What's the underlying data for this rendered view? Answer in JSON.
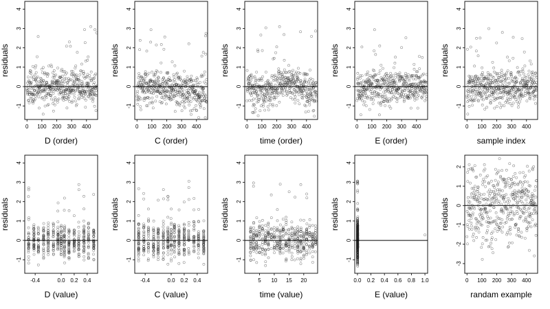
{
  "chart_data": [
    {
      "type": "scatter",
      "xlabel": "D (order)",
      "ylabel": "residuals",
      "xticks": [
        "0",
        "100",
        "200",
        "300",
        "400"
      ],
      "yticks": [
        "-1",
        "0",
        "1",
        "2",
        "3",
        "4"
      ],
      "xlim": [
        -15,
        475
      ],
      "ylim": [
        -1.7,
        4.4
      ],
      "n_points": 470,
      "gen": {
        "kind": "order",
        "curve": "none",
        "seed": 11
      }
    },
    {
      "type": "scatter",
      "xlabel": "C (order)",
      "ylabel": "residuals",
      "xticks": [
        "0",
        "100",
        "200",
        "300",
        "400"
      ],
      "yticks": [
        "-1",
        "0",
        "1",
        "2",
        "3",
        "4"
      ],
      "xlim": [
        -15,
        475
      ],
      "ylim": [
        -1.7,
        4.4
      ],
      "n_points": 470,
      "gen": {
        "kind": "order",
        "curve": "decline",
        "seed": 12
      }
    },
    {
      "type": "scatter",
      "xlabel": "time (order)",
      "ylabel": "residuals",
      "xticks": [
        "0",
        "100",
        "200",
        "300",
        "400"
      ],
      "yticks": [
        "-1",
        "0",
        "1",
        "2",
        "3",
        "4"
      ],
      "xlim": [
        -15,
        475
      ],
      "ylim": [
        -1.7,
        4.4
      ],
      "n_points": 470,
      "gen": {
        "kind": "order",
        "curve": "wave",
        "seed": 13
      }
    },
    {
      "type": "scatter",
      "xlabel": "E (order)",
      "ylabel": "residuals",
      "xticks": [
        "0",
        "100",
        "200",
        "300",
        "400"
      ],
      "yticks": [
        "-1",
        "0",
        "1",
        "2",
        "3",
        "4"
      ],
      "xlim": [
        -15,
        475
      ],
      "ylim": [
        -1.7,
        4.4
      ],
      "n_points": 470,
      "gen": {
        "kind": "order",
        "curve": "none",
        "seed": 14
      }
    },
    {
      "type": "scatter",
      "xlabel": "sample index",
      "ylabel": "residuals",
      "xticks": [
        "0",
        "100",
        "200",
        "300",
        "400"
      ],
      "yticks": [
        "-1",
        "0",
        "1",
        "2",
        "3",
        "4"
      ],
      "xlim": [
        -15,
        475
      ],
      "ylim": [
        -1.7,
        4.4
      ],
      "n_points": 470,
      "gen": {
        "kind": "order",
        "curve": "none",
        "seed": 15
      }
    },
    {
      "type": "scatter",
      "xlabel": "D (value)",
      "ylabel": "residuals",
      "xticks": [
        "-0.4",
        "0.0",
        "0.2",
        "0.4"
      ],
      "yticks": [
        "-1",
        "0",
        "1",
        "2",
        "3",
        "4"
      ],
      "xlim": [
        -0.56,
        0.56
      ],
      "ylim": [
        -1.7,
        4.4
      ],
      "n_points": 470,
      "gen": {
        "kind": "columns",
        "cols": [
          -0.5,
          -0.42,
          -0.35,
          -0.27,
          -0.2,
          -0.12,
          -0.05,
          0.0,
          0.05,
          0.12,
          0.2,
          0.27,
          0.35,
          0.42,
          0.5
        ],
        "seed": 21
      }
    },
    {
      "type": "scatter",
      "xlabel": "C (value)",
      "ylabel": "residuals",
      "xticks": [
        "-0.4",
        "0.0",
        "0.2",
        "0.4"
      ],
      "yticks": [
        "-1",
        "0",
        "1",
        "2",
        "3",
        "4"
      ],
      "xlim": [
        -0.56,
        0.56
      ],
      "ylim": [
        -1.7,
        4.4
      ],
      "n_points": 470,
      "gen": {
        "kind": "columns",
        "cols": [
          -0.5,
          -0.42,
          -0.35,
          -0.27,
          -0.2,
          -0.12,
          -0.05,
          0.0,
          0.05,
          0.12,
          0.2,
          0.27,
          0.35,
          0.42,
          0.5
        ],
        "seed": 22
      }
    },
    {
      "type": "scatter",
      "xlabel": "time (value)",
      "ylabel": "residuals",
      "xticks": [
        "5",
        "10",
        "15",
        "20"
      ],
      "yticks": [
        "-1",
        "0",
        "1",
        "2",
        "3",
        "4"
      ],
      "xlim": [
        0,
        24.7
      ],
      "ylim": [
        -1.7,
        4.4
      ],
      "n_points": 470,
      "gen": {
        "kind": "columns",
        "cols": [
          2,
          3,
          4,
          5,
          6,
          7,
          8,
          9,
          10,
          11,
          12,
          13,
          14,
          15,
          16,
          17,
          18,
          19,
          20,
          21,
          22,
          23,
          24
        ],
        "seed": 23
      }
    },
    {
      "type": "scatter",
      "xlabel": "E (value)",
      "ylabel": "residuals",
      "xticks": [
        "0.0",
        "0.2",
        "0.4",
        "0.6",
        "0.8",
        "1.0"
      ],
      "yticks": [
        "-1",
        "0",
        "1",
        "2",
        "3",
        "4"
      ],
      "xlim": [
        -0.04,
        1.04
      ],
      "ylim": [
        -1.7,
        4.4
      ],
      "n_points": 470,
      "gen": {
        "kind": "stack",
        "seed": 24
      }
    },
    {
      "type": "scatter",
      "xlabel": "randam example",
      "ylabel": "residuals",
      "xticks": [
        "0",
        "100",
        "200",
        "300",
        "400"
      ],
      "yticks": [
        "-3",
        "-2",
        "-1",
        "0",
        "1",
        "2"
      ],
      "xlim": [
        -15,
        475
      ],
      "ylim": [
        -3.5,
        2.6
      ],
      "n_points": 470,
      "gen": {
        "kind": "random",
        "seed": 25
      }
    }
  ]
}
